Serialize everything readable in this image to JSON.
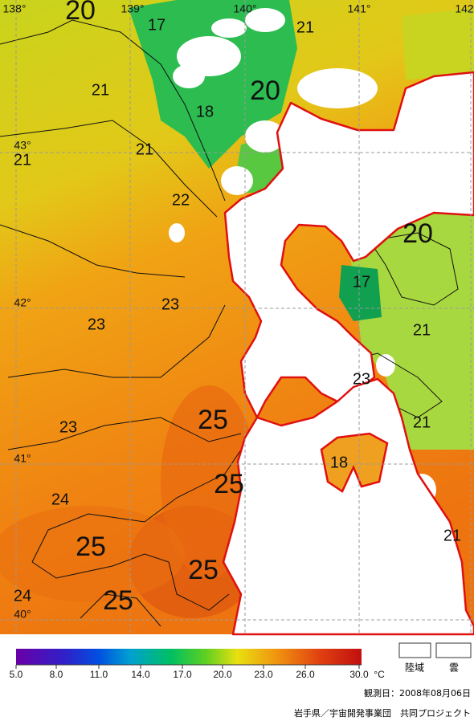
{
  "map": {
    "longitudes": [
      "138°",
      "139°",
      "140°",
      "141°",
      "142"
    ],
    "latitudes": [
      "43°",
      "42°",
      "41°",
      "40°"
    ],
    "contour_labels": [
      20,
      17,
      21,
      21,
      18,
      20,
      21,
      21,
      22,
      23,
      23,
      25,
      23,
      25,
      24,
      25,
      25,
      24,
      25,
      20,
      17,
      21,
      23,
      21,
      18,
      21
    ]
  },
  "colorbar": {
    "ticks": [
      "5.0",
      "8.0",
      "11.0",
      "14.0",
      "17.0",
      "20.0",
      "23.0",
      "26.0",
      "30.0"
    ],
    "unit": "°C"
  },
  "legend": {
    "land": "陸域",
    "cloud": "雲"
  },
  "footer": {
    "date": "観測日：2008年08月06日",
    "credit": "岩手県／宇宙開発事業団　共同プロジェクト"
  }
}
